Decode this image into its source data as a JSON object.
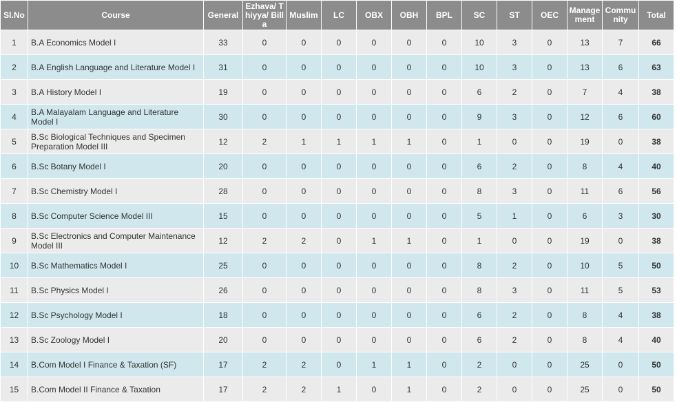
{
  "table": {
    "headers": [
      "Sl.No",
      "Course",
      "General",
      "Ezhava/ Thiyya/ Billa",
      "Muslim",
      "LC",
      "OBX",
      "OBH",
      "BPL",
      "SC",
      "ST",
      "OEC",
      "Management",
      "Community",
      "Total"
    ],
    "rows": [
      [
        1,
        "B.A Economics Model I",
        33,
        0,
        0,
        0,
        0,
        0,
        0,
        10,
        3,
        0,
        13,
        7,
        66
      ],
      [
        2,
        "B.A English Language and Literature Model I",
        31,
        0,
        0,
        0,
        0,
        0,
        0,
        10,
        3,
        0,
        13,
        6,
        63
      ],
      [
        3,
        "B.A History Model I",
        19,
        0,
        0,
        0,
        0,
        0,
        0,
        6,
        2,
        0,
        7,
        4,
        38
      ],
      [
        4,
        "B.A Malayalam Language and Literature Model I",
        30,
        0,
        0,
        0,
        0,
        0,
        0,
        9,
        3,
        0,
        12,
        6,
        60
      ],
      [
        5,
        "B.Sc Biological Techniques and Specimen Preparation Model III",
        12,
        2,
        1,
        1,
        1,
        1,
        0,
        1,
        0,
        0,
        19,
        0,
        38
      ],
      [
        6,
        "B.Sc Botany Model I",
        20,
        0,
        0,
        0,
        0,
        0,
        0,
        6,
        2,
        0,
        8,
        4,
        40
      ],
      [
        7,
        "B.Sc Chemistry Model I",
        28,
        0,
        0,
        0,
        0,
        0,
        0,
        8,
        3,
        0,
        11,
        6,
        56
      ],
      [
        8,
        "B.Sc Computer Science Model III",
        15,
        0,
        0,
        0,
        0,
        0,
        0,
        5,
        1,
        0,
        6,
        3,
        30
      ],
      [
        9,
        "B.Sc Electronics and Computer Maintenance Model III",
        12,
        2,
        2,
        0,
        1,
        1,
        0,
        1,
        0,
        0,
        19,
        0,
        38
      ],
      [
        10,
        "B.Sc Mathematics Model I",
        25,
        0,
        0,
        0,
        0,
        0,
        0,
        8,
        2,
        0,
        10,
        5,
        50
      ],
      [
        11,
        "B.Sc Physics Model I",
        26,
        0,
        0,
        0,
        0,
        0,
        0,
        8,
        3,
        0,
        11,
        5,
        53
      ],
      [
        12,
        "B.Sc Psychology Model I",
        18,
        0,
        0,
        0,
        0,
        0,
        0,
        6,
        2,
        0,
        8,
        4,
        38
      ],
      [
        13,
        "B.Sc Zoology Model I",
        20,
        0,
        0,
        0,
        0,
        0,
        0,
        6,
        2,
        0,
        8,
        4,
        40
      ],
      [
        14,
        "B.Com Model I Finance & Taxation (SF)",
        17,
        2,
        2,
        0,
        1,
        1,
        0,
        2,
        0,
        0,
        25,
        0,
        50
      ],
      [
        15,
        "B.Com Model II Finance & Taxation",
        17,
        2,
        2,
        1,
        0,
        1,
        0,
        2,
        0,
        0,
        25,
        0,
        50
      ]
    ]
  }
}
